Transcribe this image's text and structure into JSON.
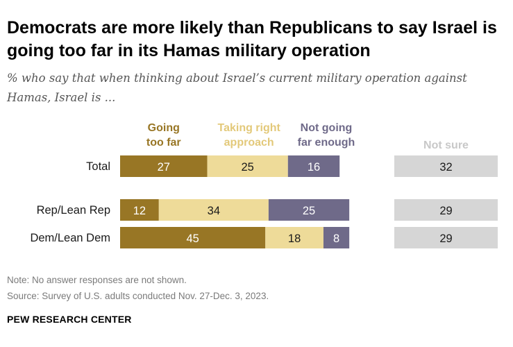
{
  "title": "Democrats are more likely than Republicans to say Israel is going too far in its Hamas military operation",
  "subtitle": "% who say that when thinking about Israel’s current military operation against Hamas, Israel is ...",
  "note": "Note: No answer responses are not shown.",
  "source": "Source: Survey of U.S. adults conducted Nov. 27-Dec. 3, 2023.",
  "footer": "PEW RESEARCH CENTER",
  "colors": {
    "going_too_far": "#987625",
    "taking_right_approach": "#EEDB99",
    "not_going_far_enough": "#6F6A89",
    "not_sure": "#D6D6D6"
  },
  "chart_data": {
    "type": "bar",
    "orientation": "horizontal-stacked",
    "categories": [
      "Total",
      "Rep/Lean Rep",
      "Dem/Lean Dem"
    ],
    "series": [
      {
        "name": "Going too far",
        "header": [
          "Going",
          "too far"
        ],
        "values": [
          27,
          12,
          45
        ]
      },
      {
        "name": "Taking right approach",
        "header": [
          "Taking right",
          "approach"
        ],
        "values": [
          25,
          34,
          18
        ]
      },
      {
        "name": "Not going far enough",
        "header": [
          "Not going",
          "far enough"
        ],
        "values": [
          16,
          25,
          8
        ]
      }
    ],
    "separate_series": {
      "name": "Not sure",
      "header": [
        "Not sure"
      ],
      "values": [
        32,
        29,
        29
      ]
    }
  }
}
